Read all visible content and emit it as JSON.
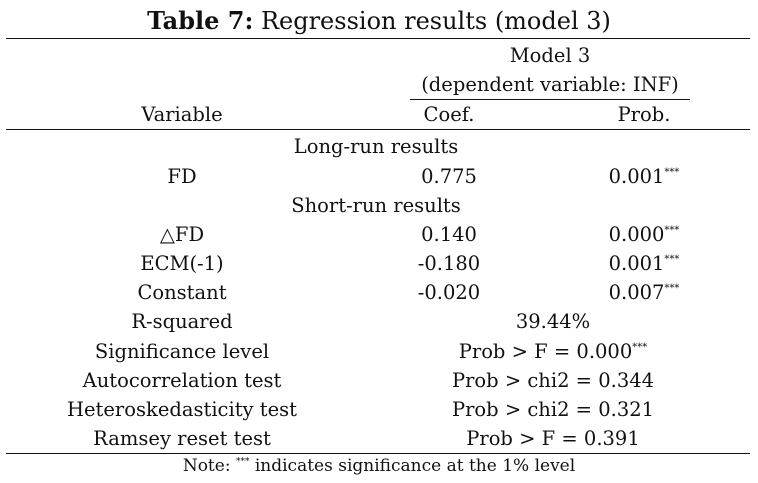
{
  "table": {
    "title_bold": "Table 7:",
    "title_rest": " Regression results (model 3)",
    "model_header": "Model 3",
    "model_subheader": "(dependent variable: INF)",
    "col_variable": "Variable",
    "col_coef": "Coef.",
    "col_prob": "Prob.",
    "section_long": "Long-run results",
    "section_short": "Short-run results",
    "rows_long": [
      {
        "variable": "FD",
        "coef": "0.775",
        "prob": "0.001",
        "stars": "***"
      }
    ],
    "rows_short": [
      {
        "variable": "△FD",
        "coef": "0.140",
        "prob": "0.000",
        "stars": "***"
      },
      {
        "variable": "ECM(-1)",
        "coef": "-0.180",
        "prob": "0.001",
        "stars": "***"
      },
      {
        "variable": "Constant",
        "coef": "-0.020",
        "prob": "0.007",
        "stars": "***"
      }
    ],
    "stats": [
      {
        "label": "R-squared",
        "value": "39.44%",
        "stars": ""
      },
      {
        "label": "Significance level",
        "value": "Prob > F = 0.000",
        "stars": "***"
      },
      {
        "label": "Autocorrelation test",
        "value": "Prob > chi2 = 0.344",
        "stars": ""
      },
      {
        "label": "Heteroskedasticity test",
        "value": "Prob > chi2 = 0.321",
        "stars": ""
      },
      {
        "label": "Ramsey reset test",
        "value": "Prob > F = 0.391",
        "stars": ""
      }
    ],
    "note_prefix": "Note: ",
    "note_stars": "***",
    "note_rest": " indicates significance at the 1% level"
  }
}
